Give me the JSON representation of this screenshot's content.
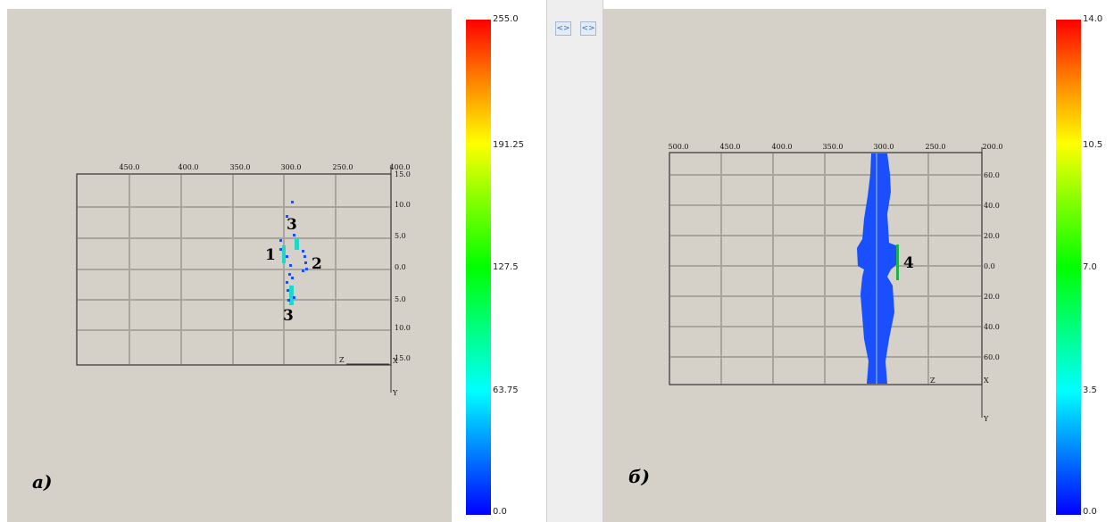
{
  "left_view": {
    "panel_label": "a)",
    "colorbar": {
      "max": "255.0",
      "ticks": [
        "191.25",
        "127.5",
        "63.75"
      ],
      "min": "0.0"
    },
    "top_axis_ticks": [
      "450.0",
      "400.0",
      "350.0",
      "300.0",
      "250.0"
    ],
    "corner_label": "400.0",
    "right_axis_ticks": [
      "15.0",
      "10.0",
      "5.0",
      "0.0",
      "5.0",
      "10.0",
      "15.0"
    ],
    "axis_z": "Z",
    "axis_x": "X",
    "axis_y": "Y",
    "annotations": [
      "3",
      "1",
      "2",
      "3"
    ]
  },
  "right_view": {
    "panel_label": "б)",
    "colorbar": {
      "max": "14.0",
      "ticks": [
        "10.5",
        "7.0",
        "3.5"
      ],
      "min": "0.0"
    },
    "top_axis_ticks": [
      "500.0",
      "450.0",
      "400.0",
      "350.0",
      "300.0",
      "250.0"
    ],
    "corner_label": "200.0",
    "right_axis_ticks": [
      "60.0",
      "40.0",
      "20.0",
      "0.0",
      "20.0",
      "40.0",
      "60.0"
    ],
    "axis_z": "Z",
    "axis_x": "X",
    "axis_y": "Y",
    "annotations": [
      "4"
    ]
  },
  "splitter": {
    "buttons": [
      "<>",
      "<>"
    ]
  },
  "colors": {
    "panel_bg": "#d5d0c8",
    "points_blue": "#1a4fff",
    "points_cyan": "#20d8c8",
    "marker_green": "#1db14a"
  }
}
